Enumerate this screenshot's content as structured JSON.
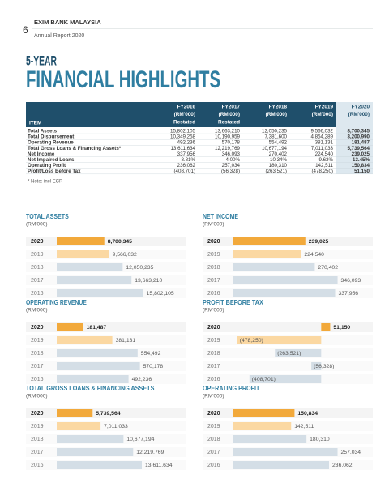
{
  "header": {
    "page": "6",
    "org": "EXIM BANK MALAYSIA",
    "report": "Annual Report 2020"
  },
  "title": {
    "line1": "5-YEAR",
    "line2": "FINANCIAL HIGHLIGHTS"
  },
  "table": {
    "columns": [
      [
        "ITEM"
      ],
      [
        "FY2016",
        "(RM'000)",
        "Restated"
      ],
      [
        "FY2017",
        "(RM'000)",
        "Restated"
      ],
      [
        "FY2018",
        "(RM'000)"
      ],
      [
        "FY2019",
        "(RM'000)"
      ],
      [
        "FY2020",
        "(RM'000)"
      ]
    ],
    "rows": [
      [
        "Total Assets",
        "15,802,105",
        "13,663,210",
        "12,050,235",
        "9,566,032",
        "8,700,345"
      ],
      [
        "Total Disbursement",
        "10,349,258",
        "10,190,959",
        "7,381,600",
        "4,854,289",
        "3,200,990"
      ],
      [
        "Operating Revenue",
        "492,236",
        "570,178",
        "554,492",
        "381,131",
        "181,487"
      ],
      [
        "Total Gross Loans & Financing Assets*",
        "13,611,634",
        "12,219,769",
        "10,677,194",
        "7,011,033",
        "5,739,564"
      ],
      [
        "Net Income",
        "337,956",
        "346,093",
        "270,402",
        "224,540",
        "239,025"
      ],
      [
        "Net Impaired Loans",
        "8.81%",
        "4.00%",
        "10.34%",
        "9.63%",
        "13.45%"
      ],
      [
        "Operating Profit",
        "236,062",
        "257,034",
        "180,310",
        "142,511",
        "150,834"
      ],
      [
        "Profit/Loss Before Tax",
        "(408,701)",
        "(56,328)",
        "(263,521)",
        "(478,250)",
        "51,150"
      ]
    ]
  },
  "note": "* Note: incl ECR",
  "chart_data": [
    {
      "type": "bar",
      "title": "TOTAL ASSETS",
      "subtitle": "(RM'000)",
      "categories": [
        "2020",
        "2019",
        "2018",
        "2017",
        "2016"
      ],
      "values": [
        8700345,
        9566032,
        12050235,
        13663210,
        15802105
      ],
      "value_labels": [
        "8,700,345",
        "9,566,032",
        "12,050,235",
        "13,663,210",
        "15,802,105"
      ],
      "colors": [
        "#f2a93b",
        "#fbd8a2",
        "#d4dee6",
        "#d4dee6",
        "#d4dee6"
      ],
      "xlim": [
        0,
        16000000
      ]
    },
    {
      "type": "bar",
      "title": "NET INCOME",
      "subtitle": "(RM'000)",
      "categories": [
        "2020",
        "2019",
        "2018",
        "2017",
        "2016"
      ],
      "values": [
        239025,
        224540,
        270402,
        346093,
        337956
      ],
      "value_labels": [
        "239,025",
        "224,540",
        "270,402",
        "346,093",
        "337,956"
      ],
      "colors": [
        "#f2a93b",
        "#fbd8a2",
        "#d4dee6",
        "#d4dee6",
        "#d4dee6"
      ],
      "xlim": [
        0,
        350000
      ]
    },
    {
      "type": "bar",
      "title": "OPERATING REVENUE",
      "subtitle": "(RM'000)",
      "categories": [
        "2020",
        "2019",
        "2018",
        "2017",
        "2016"
      ],
      "values": [
        181487,
        381131,
        554492,
        570178,
        492236
      ],
      "value_labels": [
        "181,487",
        "381,131",
        "554,492",
        "570,178",
        "492,236"
      ],
      "colors": [
        "#f2a93b",
        "#fbd8a2",
        "#d4dee6",
        "#d4dee6",
        "#d4dee6"
      ],
      "xlim": [
        0,
        600000
      ]
    },
    {
      "type": "bar",
      "title": "PROFIT BEFORE TAX",
      "subtitle": "(RM'000)",
      "categories": [
        "2020",
        "2019",
        "2018",
        "2017",
        "2016"
      ],
      "values": [
        51150,
        -478250,
        -263521,
        -56328,
        -408701
      ],
      "value_labels": [
        "51,150",
        "(478,250)",
        "(263,521)",
        "(56,328)",
        "(408,701)"
      ],
      "colors": [
        "#f2a93b",
        "#fbd8a2",
        "#d4dee6",
        "#d4dee6",
        "#d4dee6"
      ],
      "xlim": [
        -500000,
        100000
      ]
    },
    {
      "type": "bar",
      "title": "TOTAL GROSS LOANS & FINANCING ASSETS",
      "subtitle": "(RM'000)",
      "categories": [
        "2020",
        "2019",
        "2018",
        "2017",
        "2016"
      ],
      "values": [
        5739564,
        7011033,
        10677194,
        12219769,
        13611634
      ],
      "value_labels": [
        "5,739,564",
        "7,011,033",
        "10,677,194",
        "12,219,769",
        "13,611,634"
      ],
      "colors": [
        "#f2a93b",
        "#fbd8a2",
        "#d4dee6",
        "#d4dee6",
        "#d4dee6"
      ],
      "xlim": [
        0,
        14000000
      ]
    },
    {
      "type": "bar",
      "title": "OPERATING PROFIT",
      "subtitle": "(RM'000)",
      "categories": [
        "2020",
        "2019",
        "2018",
        "2017",
        "2016"
      ],
      "values": [
        150834,
        142511,
        180310,
        257034,
        236062
      ],
      "value_labels": [
        "150,834",
        "142,511",
        "180,310",
        "257,034",
        "236,062"
      ],
      "colors": [
        "#f2a93b",
        "#fbd8a2",
        "#d4dee6",
        "#d4dee6",
        "#d4dee6"
      ],
      "xlim": [
        0,
        260000
      ]
    }
  ]
}
